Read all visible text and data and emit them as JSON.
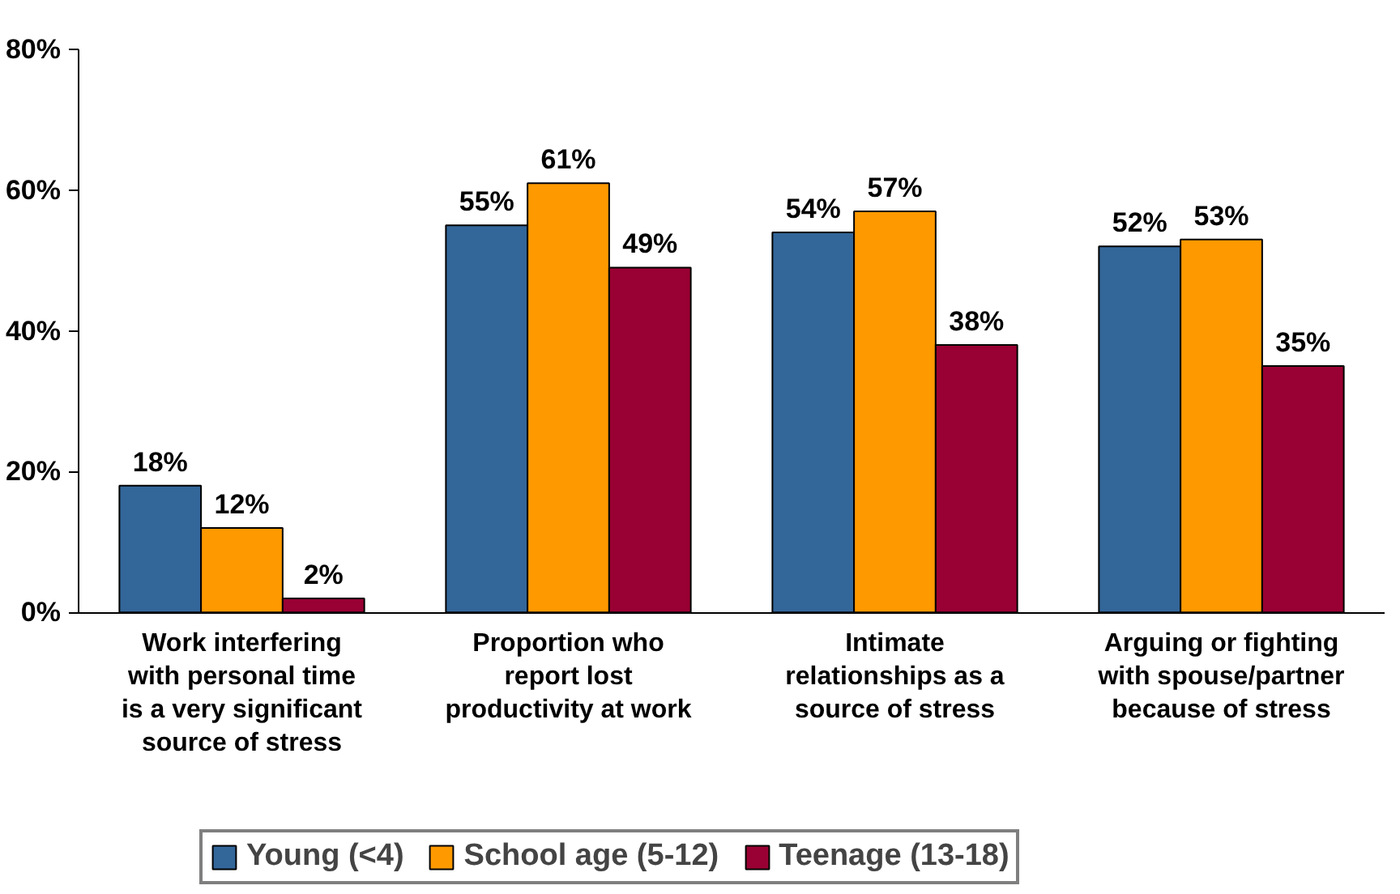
{
  "chart_data": {
    "type": "bar",
    "categories": [
      "Work interfering\nwith personal time\nis a very significant\nsource of stress",
      "Proportion who\nreport lost\nproductivity at work",
      "Intimate\nrelationships as a\nsource of stress",
      "Arguing or fighting\nwith spouse/partner\nbecause of stress"
    ],
    "series": [
      {
        "name": "Young (<4)",
        "color": "#336699",
        "values": [
          18,
          55,
          54,
          52
        ],
        "value_labels": [
          "18%",
          "55%",
          "54%",
          "52%"
        ]
      },
      {
        "name": "School age (5-12)",
        "color": "#ff9900",
        "values": [
          12,
          61,
          57,
          53
        ],
        "value_labels": [
          "12%",
          "61%",
          "57%",
          "53%"
        ]
      },
      {
        "name": "Teenage (13-18)",
        "color": "#990033",
        "values": [
          2,
          49,
          38,
          35
        ],
        "value_labels": [
          "2%",
          "49%",
          "38%",
          "35%"
        ]
      }
    ],
    "ylim": [
      0,
      80
    ],
    "yticks": [
      {
        "value": 0,
        "label": "0%"
      },
      {
        "value": 20,
        "label": "20%"
      },
      {
        "value": 40,
        "label": "40%"
      },
      {
        "value": 60,
        "label": "60%"
      },
      {
        "value": 80,
        "label": "80%"
      }
    ],
    "grid": false,
    "legend": "bottom"
  }
}
